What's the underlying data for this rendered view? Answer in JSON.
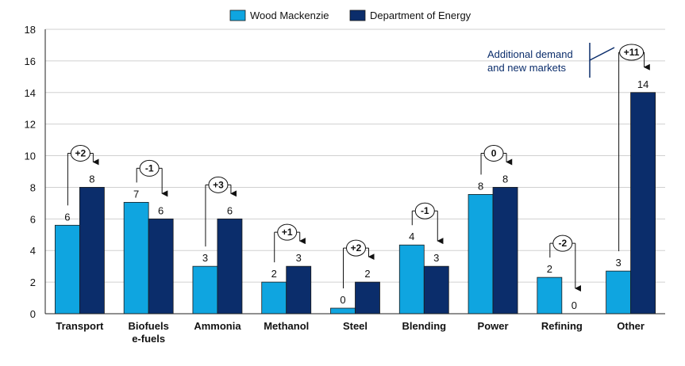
{
  "chart_data": {
    "type": "bar",
    "title": "",
    "xlabel": "",
    "ylabel": "",
    "ylim": [
      0,
      18
    ],
    "yticks": [
      0,
      2,
      4,
      6,
      8,
      10,
      12,
      14,
      16,
      18
    ],
    "grid": true,
    "legend_position": "top-center",
    "categories": [
      [
        "Transport"
      ],
      [
        "Biofuels",
        "e-fuels"
      ],
      [
        "Ammonia"
      ],
      [
        "Methanol"
      ],
      [
        "Steel"
      ],
      [
        "Blending"
      ],
      [
        "Power"
      ],
      [
        "Refining"
      ],
      [
        "Other"
      ]
    ],
    "series": [
      {
        "name": "Wood Mackenzie",
        "color": "#0fa5e0",
        "values": [
          5.6,
          7.05,
          3.0,
          2.0,
          0.35,
          4.35,
          7.55,
          2.3,
          2.7
        ],
        "labels": [
          "6",
          "7",
          "3",
          "2",
          "0",
          "4",
          "8",
          "2",
          "3"
        ]
      },
      {
        "name": "Department of Energy",
        "color": "#0b2d6b",
        "values": [
          8.0,
          6.0,
          6.0,
          3.0,
          2.0,
          3.0,
          8.0,
          0.0,
          14.0
        ],
        "labels": [
          "8",
          "6",
          "6",
          "3",
          "2",
          "3",
          "8",
          "0",
          "14"
        ]
      }
    ],
    "differences": [
      "+2",
      "-1",
      "+3",
      "+1",
      "+2",
      "-1",
      "0",
      "-2",
      "+11"
    ],
    "annotation": {
      "lines": [
        "Additional demand",
        "and new markets"
      ]
    }
  }
}
